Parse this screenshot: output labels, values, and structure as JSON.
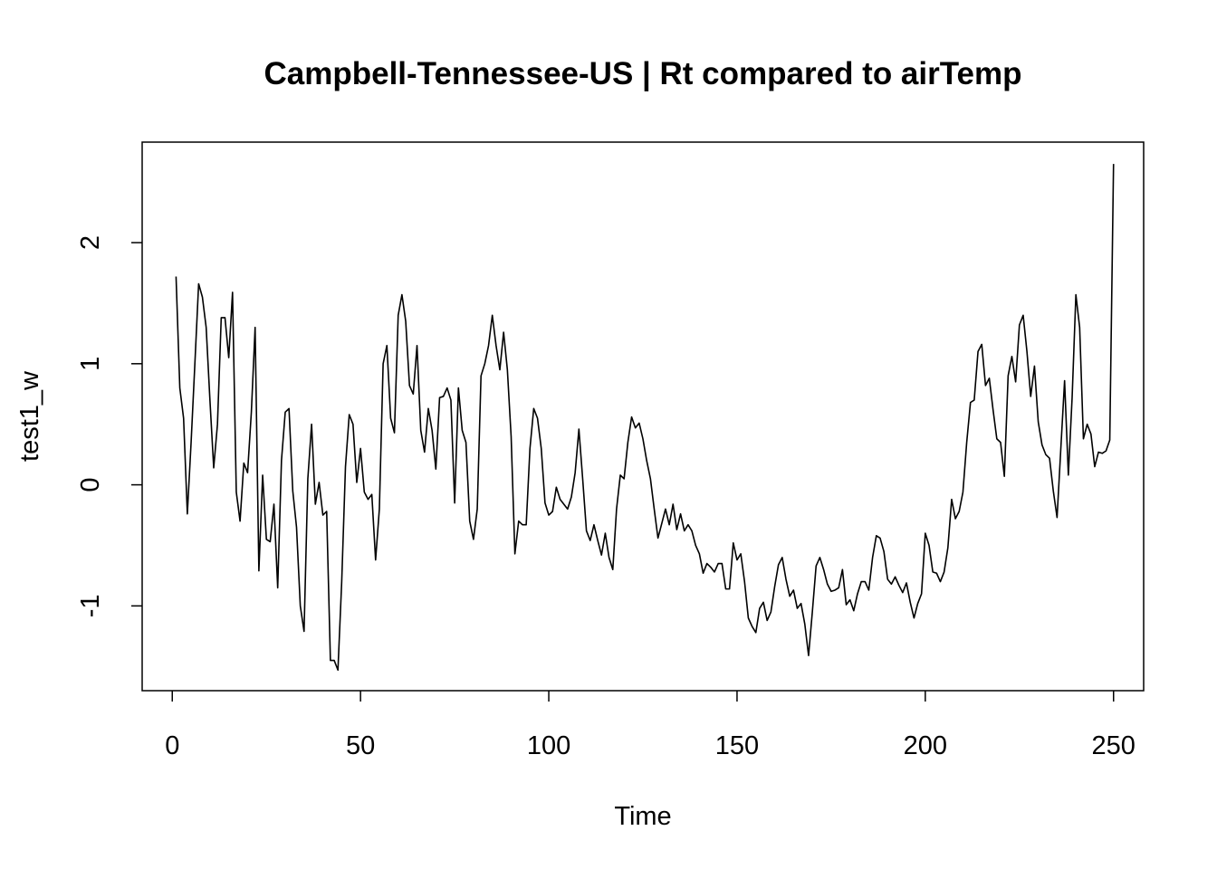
{
  "chart_data": {
    "type": "line",
    "title": "Campbell-Tennessee-US | Rt compared to airTemp",
    "xlabel": "Time",
    "ylabel": "test1_w",
    "xlim": [
      -8,
      258
    ],
    "ylim": [
      -1.7,
      2.83
    ],
    "x_ticks": [
      0,
      50,
      100,
      150,
      200,
      250
    ],
    "x_tick_labels": [
      "0",
      "50",
      "100",
      "150",
      "200",
      "250"
    ],
    "y_ticks": [
      -1,
      0,
      1,
      2
    ],
    "y_tick_labels": [
      "-1",
      "0",
      "1",
      "2"
    ],
    "grid": false,
    "legend": "none",
    "line_color": "#000000",
    "series": [
      {
        "x_start": 1,
        "x_step": 1,
        "values": [
          1.72,
          0.8,
          0.55,
          -0.24,
          0.35,
          1.0,
          1.66,
          1.55,
          1.3,
          0.7,
          0.14,
          0.5,
          1.38,
          1.38,
          1.05,
          1.59,
          -0.06,
          -0.3,
          0.18,
          0.1,
          0.6,
          1.3,
          -0.71,
          0.08,
          -0.45,
          -0.47,
          -0.16,
          -0.85,
          0.2,
          0.6,
          0.63,
          -0.05,
          -0.35,
          -1.0,
          -1.21,
          0.05,
          0.5,
          -0.16,
          0.02,
          -0.25,
          -0.22,
          -1.45,
          -1.45,
          -1.53,
          -0.8,
          0.15,
          0.58,
          0.5,
          0.02,
          0.3,
          -0.06,
          -0.12,
          -0.08,
          -0.62,
          -0.2,
          1.0,
          1.15,
          0.55,
          0.43,
          1.4,
          1.57,
          1.35,
          0.82,
          0.75,
          1.15,
          0.45,
          0.27,
          0.63,
          0.45,
          0.13,
          0.72,
          0.73,
          0.8,
          0.7,
          -0.15,
          0.8,
          0.45,
          0.35,
          -0.3,
          -0.45,
          -0.2,
          0.9,
          1.0,
          1.15,
          1.4,
          1.15,
          0.95,
          1.26,
          0.95,
          0.4,
          -0.57,
          -0.3,
          -0.33,
          -0.33,
          0.3,
          0.63,
          0.55,
          0.3,
          -0.15,
          -0.25,
          -0.22,
          -0.02,
          -0.12,
          -0.16,
          -0.2,
          -0.1,
          0.1,
          0.46,
          0.05,
          -0.38,
          -0.46,
          -0.33,
          -0.46,
          -0.58,
          -0.4,
          -0.6,
          -0.7,
          -0.2,
          0.08,
          0.05,
          0.35,
          0.56,
          0.47,
          0.51,
          0.38,
          0.2,
          0.05,
          -0.2,
          -0.44,
          -0.32,
          -0.2,
          -0.33,
          -0.16,
          -0.37,
          -0.24,
          -0.38,
          -0.33,
          -0.38,
          -0.5,
          -0.57,
          -0.73,
          -0.65,
          -0.68,
          -0.72,
          -0.65,
          -0.65,
          -0.86,
          -0.86,
          -0.48,
          -0.62,
          -0.57,
          -0.8,
          -1.1,
          -1.17,
          -1.22,
          -1.02,
          -0.97,
          -1.12,
          -1.05,
          -0.84,
          -0.66,
          -0.6,
          -0.78,
          -0.92,
          -0.87,
          -1.02,
          -0.98,
          -1.15,
          -1.41,
          -1.05,
          -0.67,
          -0.6,
          -0.7,
          -0.82,
          -0.88,
          -0.87,
          -0.85,
          -0.7,
          -0.99,
          -0.95,
          -1.04,
          -0.9,
          -0.8,
          -0.8,
          -0.87,
          -0.6,
          -0.42,
          -0.44,
          -0.55,
          -0.78,
          -0.82,
          -0.76,
          -0.83,
          -0.89,
          -0.81,
          -0.97,
          -1.1,
          -0.98,
          -0.9,
          -0.4,
          -0.5,
          -0.72,
          -0.73,
          -0.8,
          -0.72,
          -0.52,
          -0.12,
          -0.28,
          -0.22,
          -0.06,
          0.35,
          0.68,
          0.7,
          1.1,
          1.16,
          0.82,
          0.88,
          0.62,
          0.38,
          0.35,
          0.07,
          0.9,
          1.06,
          0.85,
          1.32,
          1.4,
          1.1,
          0.73,
          0.98,
          0.52,
          0.33,
          0.25,
          0.22,
          -0.05,
          -0.27,
          0.3,
          0.86,
          0.08,
          0.72,
          1.57,
          1.3,
          0.38,
          0.5,
          0.42,
          0.15,
          0.27,
          0.26,
          0.28,
          0.37,
          2.65
        ]
      }
    ]
  }
}
